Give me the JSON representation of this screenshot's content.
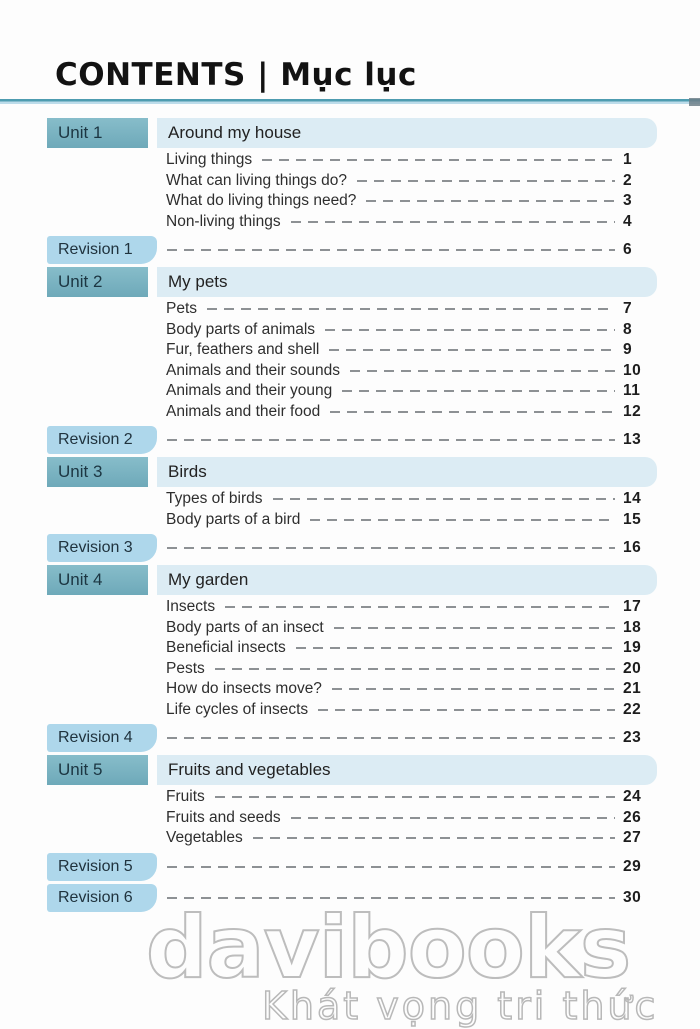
{
  "header": {
    "title": "CONTENTS | Mục lục"
  },
  "toc": {
    "units": [
      {
        "label": "Unit 1",
        "title": "Around my house",
        "items": [
          {
            "title": "Living things",
            "page": "1"
          },
          {
            "title": "What can living things do?",
            "page": "2"
          },
          {
            "title": "What do living things need?",
            "page": "3"
          },
          {
            "title": "Non-living things",
            "page": "4"
          }
        ]
      },
      {
        "label": "Unit 2",
        "title": "My pets",
        "items": [
          {
            "title": "Pets",
            "page": "7"
          },
          {
            "title": "Body parts of animals",
            "page": "8"
          },
          {
            "title": "Fur, feathers and shell",
            "page": "9"
          },
          {
            "title": "Animals and their sounds",
            "page": "10"
          },
          {
            "title": "Animals and their young",
            "page": "11"
          },
          {
            "title": "Animals and their food",
            "page": "12"
          }
        ]
      },
      {
        "label": "Unit 3",
        "title": "Birds",
        "items": [
          {
            "title": "Types of birds",
            "page": "14"
          },
          {
            "title": "Body parts of a bird",
            "page": "15"
          }
        ]
      },
      {
        "label": "Unit 4",
        "title": "My garden",
        "items": [
          {
            "title": "Insects",
            "page": "17"
          },
          {
            "title": "Body parts of an insect",
            "page": "18"
          },
          {
            "title": "Beneficial insects",
            "page": "19"
          },
          {
            "title": "Pests",
            "page": "20"
          },
          {
            "title": "How do insects move?",
            "page": "21"
          },
          {
            "title": "Life cycles of insects",
            "page": "22"
          }
        ]
      },
      {
        "label": "Unit 5",
        "title": "Fruits and vegetables",
        "items": [
          {
            "title": "Fruits",
            "page": "24"
          },
          {
            "title": "Fruits and seeds",
            "page": "26"
          },
          {
            "title": "Vegetables",
            "page": "27"
          }
        ]
      }
    ],
    "revisions": [
      {
        "label": "Revision 1",
        "page": "6"
      },
      {
        "label": "Revision 2",
        "page": "13"
      },
      {
        "label": "Revision 3",
        "page": "16"
      },
      {
        "label": "Revision 4",
        "page": "23"
      },
      {
        "label": "Revision 5",
        "page": "29"
      },
      {
        "label": "Revision 6",
        "page": "30"
      }
    ]
  },
  "watermark": {
    "line1": "davibooks",
    "line2": "Khát vọng tri thức"
  },
  "colors": {
    "unit_badge_teal": "#76afc0",
    "unit_band_blue": "#dcecf4",
    "revision_badge_blue": "#aed7eb",
    "rule_dark_teal": "#4e9cb0",
    "rule_light_blue": "#bddcea",
    "leader_gray": "#8d9194",
    "watermark_gray": "#bdbdbd"
  }
}
